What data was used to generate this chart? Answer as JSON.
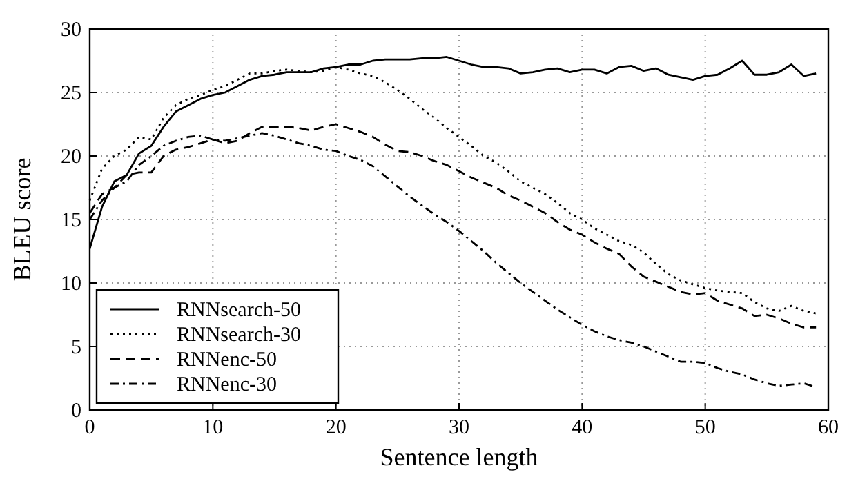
{
  "chart_data": {
    "type": "line",
    "xlabel": "Sentence length",
    "ylabel": "BLEU score",
    "x": [
      0,
      1,
      2,
      3,
      4,
      5,
      6,
      7,
      8,
      9,
      10,
      11,
      12,
      13,
      14,
      15,
      16,
      17,
      18,
      19,
      20,
      21,
      22,
      23,
      24,
      25,
      26,
      27,
      28,
      29,
      30,
      31,
      32,
      33,
      34,
      35,
      36,
      37,
      38,
      39,
      40,
      41,
      42,
      43,
      44,
      45,
      46,
      47,
      48,
      49,
      50,
      51,
      52,
      53,
      54,
      55,
      56,
      57,
      58,
      59
    ],
    "xlim": [
      0,
      60
    ],
    "xticks": [
      0,
      10,
      20,
      30,
      40,
      50,
      60
    ],
    "ylim": [
      0,
      30
    ],
    "yticks": [
      0,
      5,
      10,
      15,
      20,
      25,
      30
    ],
    "grid": true,
    "legend": "bottom left",
    "series": [
      {
        "name": "RNNsearch-50",
        "color": "#000000",
        "line_style": "solid",
        "values": [
          12.7,
          16,
          18,
          18.5,
          20.2,
          20.8,
          22.3,
          23.5,
          24,
          24.5,
          24.8,
          25,
          25.5,
          26,
          26.3,
          26.4,
          26.6,
          26.6,
          26.6,
          26.9,
          27,
          27.2,
          27.2,
          27.5,
          27.6,
          27.6,
          27.6,
          27.7,
          27.7,
          27.8,
          27.5,
          27.2,
          27,
          27,
          26.9,
          26.5,
          26.6,
          26.8,
          26.9,
          26.6,
          26.8,
          26.8,
          26.5,
          27,
          27.1,
          26.7,
          26.9,
          26.4,
          26.2,
          26,
          26.3,
          26.4,
          26.9,
          27.5,
          26.4,
          26.4,
          26.6,
          27.2,
          26.3,
          26.5
        ]
      },
      {
        "name": "RNNsearch-30",
        "color": "#000000",
        "line_style": "dotted",
        "values": [
          16.5,
          19,
          20,
          20.5,
          21.5,
          21.3,
          23,
          24,
          24.5,
          24.8,
          25.2,
          25.5,
          26,
          26.5,
          26.5,
          26.7,
          26.8,
          26.7,
          26.6,
          26.7,
          27,
          26.8,
          26.5,
          26.3,
          25.8,
          25.2,
          24.5,
          23.7,
          23,
          22.2,
          21.5,
          20.8,
          20,
          19.5,
          18.8,
          18,
          17.5,
          17,
          16.3,
          15.5,
          15,
          14.3,
          13.8,
          13.3,
          13,
          12.4,
          11.5,
          10.7,
          10.2,
          9.9,
          9.6,
          9.4,
          9.3,
          9.2,
          8.5,
          8,
          7.8,
          8.2,
          7.8,
          7.6
        ]
      },
      {
        "name": "RNNenc-50",
        "color": "#000000",
        "line_style": "dashed",
        "values": [
          15.5,
          17,
          17.5,
          18.5,
          18.7,
          18.7,
          20,
          20.5,
          20.7,
          21,
          21.3,
          21,
          21.2,
          21.8,
          22.3,
          22.3,
          22.3,
          22.2,
          22,
          22.3,
          22.5,
          22.2,
          21.9,
          21.5,
          20.9,
          20.4,
          20.3,
          20,
          19.6,
          19.3,
          18.8,
          18.3,
          17.9,
          17.5,
          16.9,
          16.5,
          16,
          15.5,
          14.8,
          14.2,
          13.8,
          13.2,
          12.7,
          12.3,
          11.3,
          10.5,
          10.1,
          9.7,
          9.3,
          9.1,
          9.2,
          8.6,
          8.3,
          8,
          7.4,
          7.5,
          7.2,
          6.8,
          6.5,
          6.5
        ]
      },
      {
        "name": "RNNenc-30",
        "color": "#000000",
        "line_style": "dashdot",
        "values": [
          15,
          16.5,
          17.5,
          18,
          19.3,
          20,
          20.8,
          21.2,
          21.5,
          21.6,
          21.3,
          21.2,
          21.4,
          21.6,
          21.8,
          21.6,
          21.3,
          21,
          20.8,
          20.5,
          20.4,
          20,
          19.7,
          19.2,
          18.4,
          17.6,
          16.8,
          16.1,
          15.4,
          14.8,
          14.1,
          13.3,
          12.5,
          11.6,
          10.8,
          10,
          9.3,
          8.6,
          7.9,
          7.3,
          6.7,
          6.2,
          5.8,
          5.5,
          5.3,
          5,
          4.6,
          4.2,
          3.8,
          3.8,
          3.7,
          3.3,
          3,
          2.8,
          2.4,
          2.1,
          1.9,
          2,
          2.1,
          1.8
        ]
      }
    ]
  }
}
